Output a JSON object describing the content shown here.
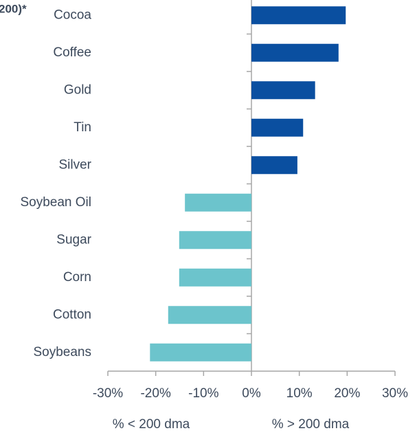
{
  "chart_data": {
    "type": "barh",
    "title": "200)*",
    "categories": [
      "Cocoa",
      "Coffee",
      "Gold",
      "Tin",
      "Silver",
      "Soybean Oil",
      "Sugar",
      "Corn",
      "Cotton",
      "Soybeans"
    ],
    "values": [
      19.7,
      18.2,
      13.3,
      10.8,
      9.6,
      -13.9,
      -15.1,
      -15.1,
      -17.4,
      -21.2
    ],
    "colors": [
      "#0a4fa0",
      "#0a4fa0",
      "#0a4fa0",
      "#0a4fa0",
      "#0a4fa0",
      "#6cc4cc",
      "#6cc4cc",
      "#6cc4cc",
      "#6cc4cc",
      "#6cc4cc"
    ],
    "xlim": [
      -30,
      30
    ],
    "xticks": [
      {
        "value": -30,
        "label": "-30%"
      },
      {
        "value": -20,
        "label": "-20%"
      },
      {
        "value": -10,
        "label": "-10%"
      },
      {
        "value": 0,
        "label": "0%"
      },
      {
        "value": 10,
        "label": "10%"
      },
      {
        "value": 20,
        "label": "20%"
      },
      {
        "value": 30,
        "label": "30%"
      }
    ],
    "annotations": [
      "% < 200 dma",
      "% > 200 dma"
    ]
  }
}
